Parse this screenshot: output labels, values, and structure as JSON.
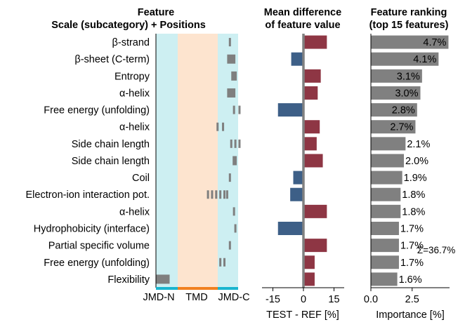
{
  "headers": {
    "feature_line1": "Feature",
    "feature_line2": "Scale (subcategory)  +  Positions",
    "diff_line1": "Mean difference",
    "diff_line2": "of feature value",
    "rank_line1": "Feature ranking",
    "rank_line2": "(top 15 features)"
  },
  "regions": [
    "JMD-N",
    "TMD",
    "JMD-C"
  ],
  "colors": {
    "jmd": "#cdeff2",
    "tmd": "#fde4cf",
    "jmd_bar": "#1ab5cf",
    "tmd_bar": "#f08020",
    "pos_mark": "#7f7f7f",
    "positive": "#8e3644",
    "negative": "#3d5f87",
    "importance": "#808080"
  },
  "total_label": "Σ=36.7%",
  "chart_data": [
    {
      "type": "position_map",
      "categories": [
        "β-strand",
        "β-sheet (C-term)",
        "Entropy",
        "α-helix",
        "Free energy (unfolding)",
        "α-helix",
        "Side chain length",
        "Side chain length",
        "Coil",
        "Electron-ion interaction pot.",
        "α-helix",
        "Hydrophobicity (interface)",
        "Partial specific volume",
        "Free energy (unfolding)",
        "Flexibility"
      ],
      "xlabels": [
        "JMD-N",
        "TMD",
        "JMD-C"
      ],
      "positions": [
        [
          27.5
        ],
        [
          27,
          27.5,
          28,
          28.5,
          29
        ],
        [
          28.5,
          29,
          29.5
        ],
        [
          27,
          27.5,
          28,
          28.5,
          29
        ],
        [
          29,
          31
        ],
        [
          23,
          25
        ],
        [
          28,
          29.5,
          31
        ],
        [
          29,
          29.5
        ],
        [
          27.5
        ],
        [
          19.5,
          21,
          22.5,
          24,
          25.5,
          26.5
        ],
        [
          29
        ],
        [
          29.5
        ],
        [
          27.5
        ],
        [
          24,
          25.5
        ],
        [
          1,
          1.5,
          2,
          2.5,
          3,
          3.5,
          4,
          4.5,
          5
        ]
      ]
    },
    {
      "type": "bar",
      "orientation": "horizontal",
      "title": "Mean difference of feature value",
      "xlabel": "TEST - REF [%]",
      "xlim": [
        -20,
        20
      ],
      "xticks": [
        -15,
        0,
        15
      ],
      "categories": [
        "β-strand",
        "β-sheet (C-term)",
        "Entropy",
        "α-helix",
        "Free energy (unfolding)",
        "α-helix",
        "Side chain length",
        "Side chain length",
        "Coil",
        "Electron-ion interaction pot.",
        "α-helix",
        "Hydrophobicity (interface)",
        "Partial specific volume",
        "Free energy (unfolding)",
        "Flexibility"
      ],
      "values": [
        11.5,
        -6,
        8.5,
        7,
        -12.5,
        8,
        6.5,
        9.5,
        -5,
        -6.5,
        11.5,
        -12.5,
        11.5,
        5.5,
        5.5
      ]
    },
    {
      "type": "bar",
      "orientation": "horizontal",
      "title": "Feature ranking (top 15 features)",
      "xlabel": "Importance [%]",
      "xlim": [
        0,
        5
      ],
      "xticks": [
        0.0,
        2.5
      ],
      "xtick_labels": [
        "0.0",
        "2.5"
      ],
      "categories": [
        "β-strand",
        "β-sheet (C-term)",
        "Entropy",
        "α-helix",
        "Free energy (unfolding)",
        "α-helix",
        "Side chain length",
        "Side chain length",
        "Coil",
        "Electron-ion interaction pot.",
        "α-helix",
        "Hydrophobicity (interface)",
        "Partial specific volume",
        "Free energy (unfolding)",
        "Flexibility"
      ],
      "values": [
        4.7,
        4.1,
        3.1,
        3.0,
        2.8,
        2.7,
        2.1,
        2.0,
        1.9,
        1.8,
        1.8,
        1.7,
        1.7,
        1.7,
        1.6
      ],
      "value_labels": [
        "4.7%",
        "4.1%",
        "3.1%",
        "3.0%",
        "2.8%",
        "2.7%",
        "2.1%",
        "2.0%",
        "1.9%",
        "1.8%",
        "1.8%",
        "1.7%",
        "1.7%",
        "1.7%",
        "1.6%"
      ]
    }
  ]
}
